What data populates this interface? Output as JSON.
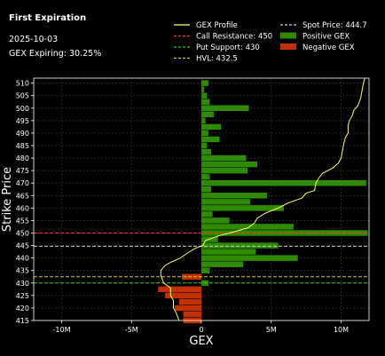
{
  "header": {
    "title": "First Expiration",
    "date": "2025-10-03",
    "expiring": "GEX Expiring: 30.25%"
  },
  "legend": [
    {
      "label": "GEX Profile",
      "kind": "line",
      "color": "#ffff66",
      "dash": false
    },
    {
      "label": "Spot Price: 444.7",
      "kind": "line",
      "color": "#cccccc",
      "dash": true
    },
    {
      "label": "Call Resistance: 450",
      "kind": "line",
      "color": "#ff3333",
      "dash": true
    },
    {
      "label": "Positive GEX",
      "kind": "box",
      "color": "#2e8b00"
    },
    {
      "label": "Put Support: 430",
      "kind": "line",
      "color": "#33cc33",
      "dash": true
    },
    {
      "label": "Negative GEX",
      "kind": "box",
      "color": "#c03000"
    },
    {
      "label": "HVL: 432.5",
      "kind": "line",
      "color": "#cccc33",
      "dash": true
    }
  ],
  "chart_data": {
    "type": "bar",
    "orientation": "horizontal",
    "xlabel": "GEX",
    "ylabel": "Strike Price",
    "xlim": [
      -12000000,
      12000000
    ],
    "ylim": [
      415,
      512
    ],
    "xticks": [
      -10000000,
      -5000000,
      0,
      5000000,
      10000000
    ],
    "xtick_labels": [
      "-10M",
      "-5M",
      "0",
      "5M",
      "10M"
    ],
    "yticks": [
      415,
      420,
      425,
      430,
      435,
      440,
      445,
      450,
      455,
      460,
      465,
      470,
      475,
      480,
      485,
      490,
      495,
      500,
      505,
      510
    ],
    "grid": true,
    "strikes": [
      415,
      417.5,
      420,
      422.5,
      425,
      427.5,
      430,
      432.5,
      435,
      437.5,
      440,
      442.5,
      445,
      447.5,
      450,
      452.5,
      455,
      457.5,
      460,
      462.5,
      465,
      467.5,
      470,
      472.5,
      475,
      477.5,
      480,
      482.5,
      485,
      487.5,
      490,
      492.5,
      495,
      497.5,
      500,
      502.5,
      505,
      507.5,
      510
    ],
    "gex": [
      -1300000,
      -1300000,
      -1900000,
      -1600000,
      -2600000,
      -3100000,
      500000,
      -1400000,
      600000,
      3000000,
      6900000,
      3900000,
      5500000,
      1200000,
      11900000,
      6600000,
      2000000,
      800000,
      5900000,
      3500000,
      4700000,
      700000,
      11800000,
      600000,
      3300000,
      4000000,
      3200000,
      700000,
      400000,
      1300000,
      500000,
      1400000,
      300000,
      900000,
      3400000,
      600000,
      400000,
      200000,
      500000
    ],
    "profile": {
      "strikes": [
        415,
        418,
        420,
        423,
        425,
        428,
        430,
        433,
        435,
        437,
        438,
        440,
        442,
        444,
        445,
        447,
        449,
        450,
        452,
        454,
        456,
        458,
        460,
        462,
        464,
        466,
        467,
        470,
        472,
        474,
        476,
        478,
        480,
        483,
        486,
        488,
        490,
        493,
        495,
        497,
        499,
        501,
        504,
        507,
        510,
        512
      ],
      "values": [
        -1600000,
        -1800000,
        -2000000,
        -2000000,
        -2200000,
        -2200000,
        -2700000,
        -2900000,
        -2900000,
        -2600000,
        -2300000,
        -1500000,
        -1000000,
        -400000,
        100000,
        300000,
        1300000,
        2000000,
        3300000,
        3800000,
        4000000,
        4600000,
        5500000,
        6200000,
        7200000,
        7500000,
        8100000,
        8200000,
        8400000,
        8700000,
        9400000,
        9800000,
        10000000,
        10100000,
        10200000,
        10300000,
        10500000,
        10500000,
        10600000,
        10800000,
        10900000,
        11200000,
        11400000,
        11500000,
        11600000,
        11700000
      ]
    },
    "levels": [
      {
        "name": "Spot Price",
        "value": 444.7,
        "color": "#cccccc"
      },
      {
        "name": "Call Resistance",
        "value": 450,
        "color": "#ff3333"
      },
      {
        "name": "Put Support",
        "value": 430,
        "color": "#33cc33"
      },
      {
        "name": "HVL",
        "value": 432.5,
        "color": "#cccc33"
      }
    ],
    "positive_color": "#2e8b00",
    "negative_color": "#c03000",
    "profile_color": "#ffff66"
  }
}
